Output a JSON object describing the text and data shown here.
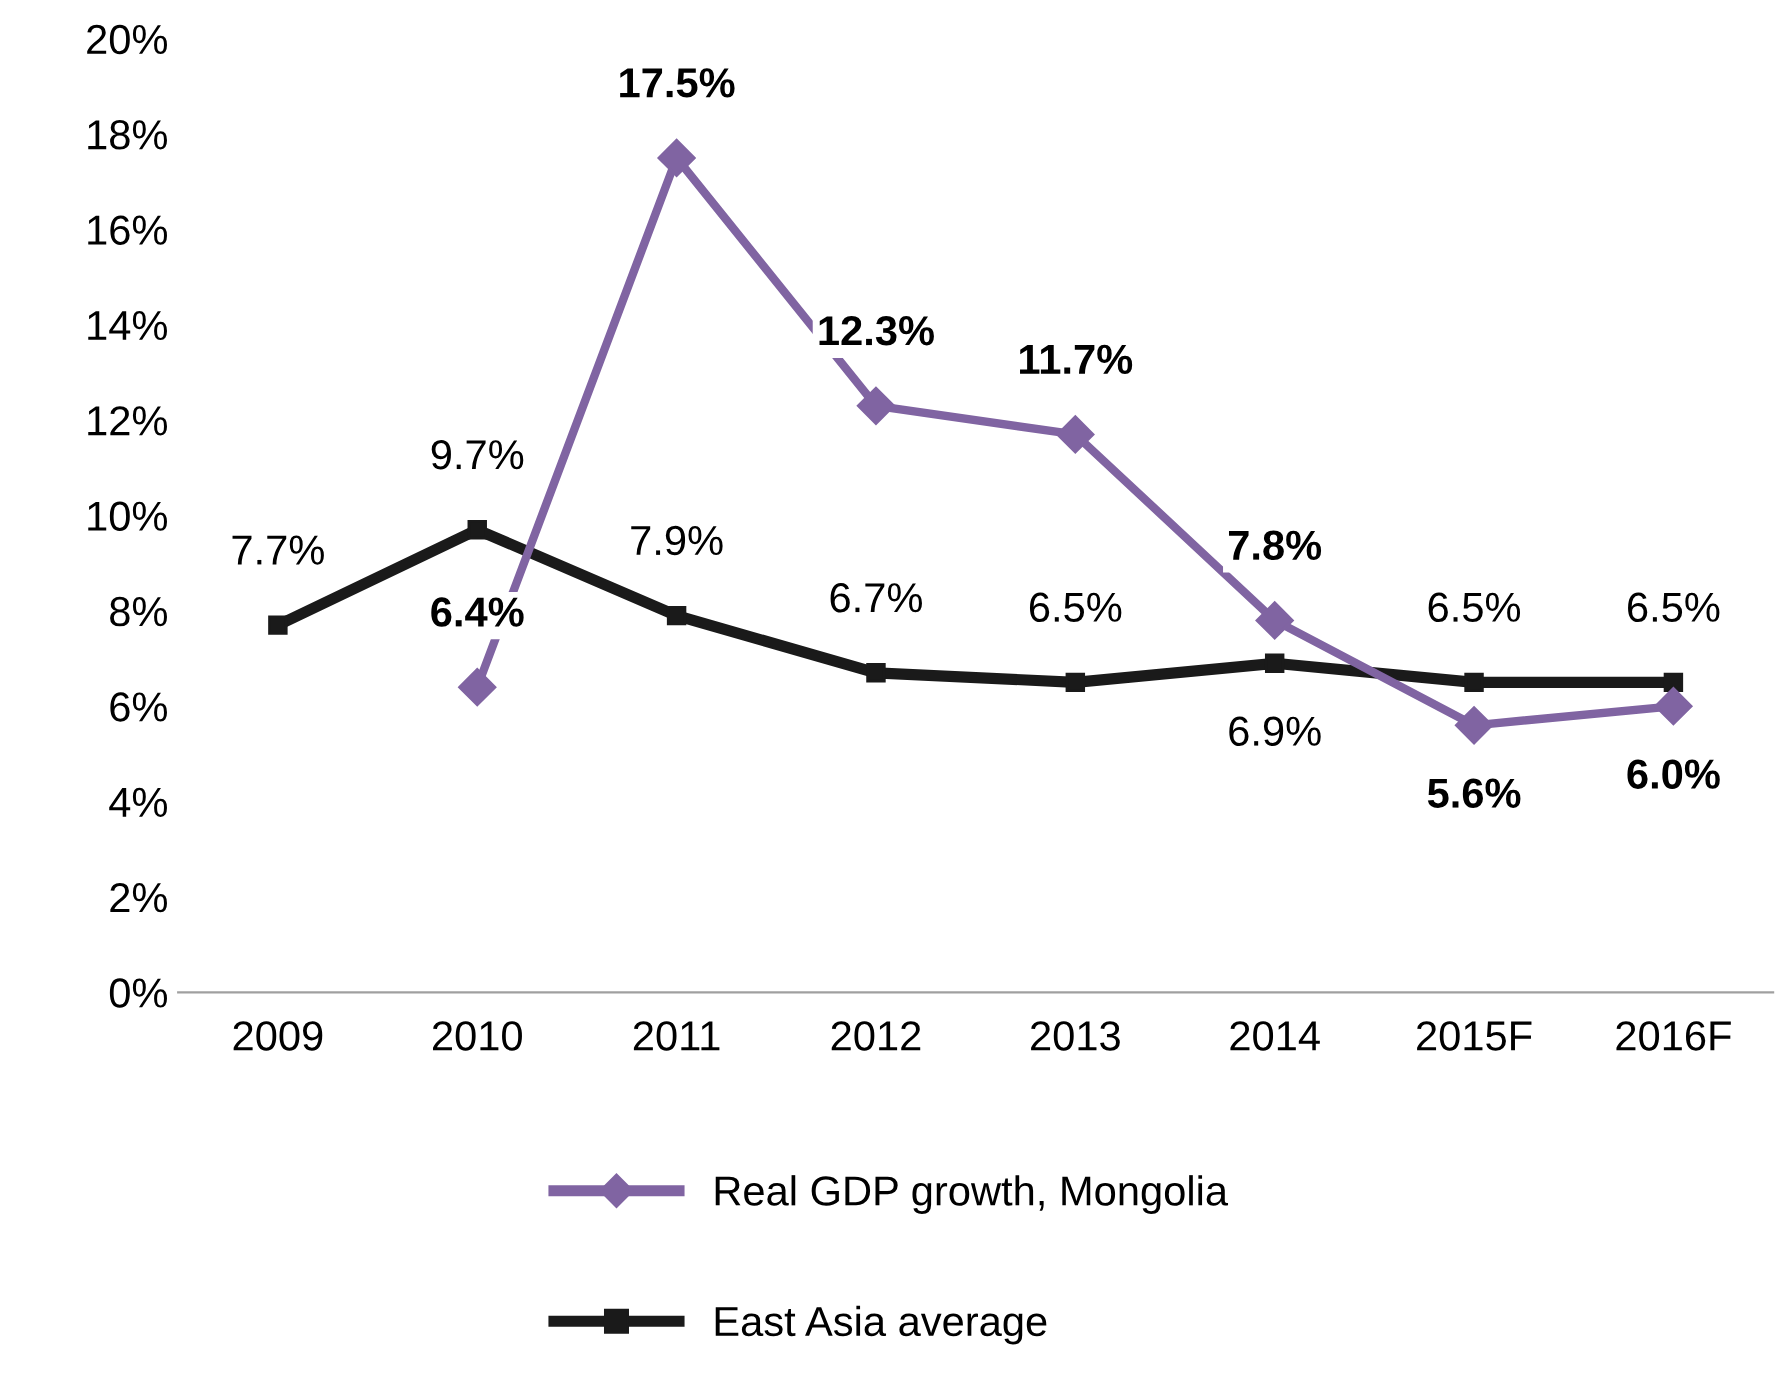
{
  "chart_data": {
    "type": "line",
    "categories": [
      "2009",
      "2010",
      "2011",
      "2012",
      "2013",
      "2014",
      "2015F",
      "2016F"
    ],
    "series": [
      {
        "name": "Real GDP growth, Mongolia",
        "color": "#8064a2",
        "marker": "diamond",
        "values": [
          null,
          6.4,
          17.5,
          12.3,
          11.7,
          7.8,
          5.6,
          6.0
        ],
        "value_labels": [
          null,
          "6.4%",
          "17.5%",
          "12.3%",
          "11.7%",
          "7.8%",
          "5.6%",
          "6.0%"
        ]
      },
      {
        "name": "East Asia average",
        "color": "#1a1a1a",
        "marker": "square",
        "values": [
          7.7,
          9.7,
          7.9,
          6.7,
          6.5,
          6.9,
          6.5,
          6.5
        ],
        "value_labels": [
          "7.7%",
          "9.7%",
          "7.9%",
          "6.7%",
          "6.5%",
          "6.9%",
          "6.5%",
          "6.5%"
        ]
      }
    ],
    "ylim": [
      0,
      20
    ],
    "yticks": [
      {
        "value": 0,
        "label": "0%"
      },
      {
        "value": 2,
        "label": "2%"
      },
      {
        "value": 4,
        "label": "4%"
      },
      {
        "value": 6,
        "label": "6%"
      },
      {
        "value": 8,
        "label": "8%"
      },
      {
        "value": 10,
        "label": "10%"
      },
      {
        "value": 12,
        "label": "12%"
      },
      {
        "value": 14,
        "label": "14%"
      },
      {
        "value": 16,
        "label": "16%"
      },
      {
        "value": 18,
        "label": "18%"
      },
      {
        "value": 20,
        "label": "20%"
      }
    ],
    "grid": false,
    "legend": "bottom",
    "line_style": "solid"
  }
}
